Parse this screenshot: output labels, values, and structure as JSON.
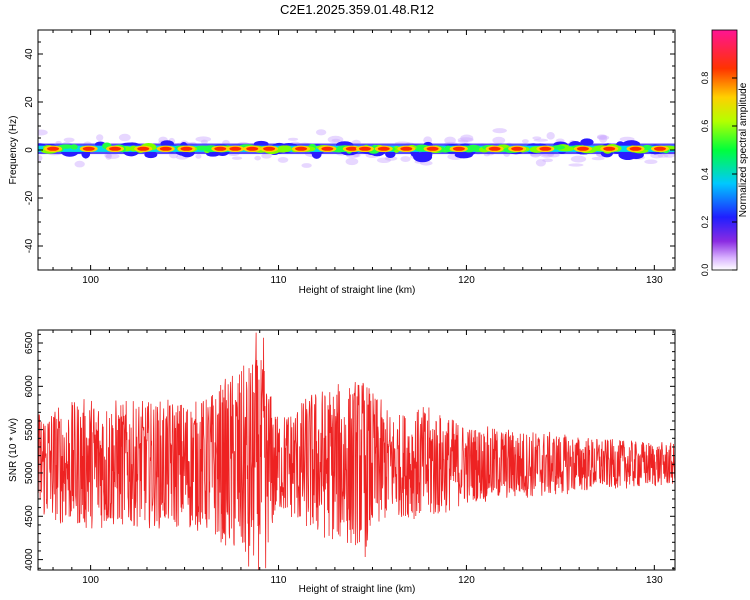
{
  "figure_title": "C2E1.2025.359.01.48.R12",
  "colors": {
    "snr_line": "#ee2222",
    "spectro_background": "#ffffff",
    "axis": "#000000"
  },
  "chart_data": [
    {
      "type": "heatmap",
      "title": "C2E1.2025.359.01.48.R12",
      "xlabel": "Height of straight line (km)",
      "ylabel": "Frequency (Hz)",
      "xlim": [
        97.2,
        131.1
      ],
      "ylim": [
        -50,
        50
      ],
      "xticks": [
        100,
        110,
        120,
        130
      ],
      "yticks": [
        40,
        20,
        0,
        -20,
        -40
      ],
      "band_center_hz": 0.5,
      "band_halfwidth_hz": 4,
      "colorbar": {
        "label": "Normalized spectral amplitude",
        "range": [
          0,
          1
        ],
        "ticks": [
          "0.0",
          "0.2",
          "0.4",
          "0.6",
          "0.8"
        ],
        "colormap": "rainbow (white-violet-blue-cyan-green-yellow-orange-red-magenta)"
      },
      "strong_peaks_km": [
        98.0,
        99.9,
        101.3,
        102.8,
        104.0,
        105.1,
        106.9,
        107.7,
        108.6,
        109.5,
        111.2,
        112.6,
        113.9,
        114.6,
        115.6,
        116.8,
        118.2,
        119.6,
        121.5,
        122.7,
        124.2,
        126.2,
        127.6,
        129.0,
        130.3
      ]
    },
    {
      "type": "line",
      "xlabel": "Height of straight line (km)",
      "ylabel": "SNR (10 * v/v)",
      "xlim": [
        97.2,
        131.1
      ],
      "ylim": [
        3880,
        6650
      ],
      "xticks": [
        100,
        110,
        120,
        130
      ],
      "yticks": [
        4000,
        4500,
        5000,
        5500,
        6000,
        6500
      ],
      "mean": 5100,
      "envelope": [
        {
          "x": 97.2,
          "amplitude": 700
        },
        {
          "x": 100,
          "amplitude": 850
        },
        {
          "x": 103,
          "amplitude": 800
        },
        {
          "x": 106,
          "amplitude": 850
        },
        {
          "x": 108,
          "amplitude": 1250
        },
        {
          "x": 109,
          "amplitude": 1400
        },
        {
          "x": 110,
          "amplitude": 600
        },
        {
          "x": 112,
          "amplitude": 950
        },
        {
          "x": 114.5,
          "amplitude": 1100
        },
        {
          "x": 116,
          "amplitude": 650
        },
        {
          "x": 118,
          "amplitude": 750
        },
        {
          "x": 120,
          "amplitude": 500
        },
        {
          "x": 124,
          "amplitude": 420
        },
        {
          "x": 127,
          "amplitude": 330
        },
        {
          "x": 131.1,
          "amplitude": 270
        }
      ],
      "extremes": [
        {
          "x": 108.4,
          "y": 3920
        },
        {
          "x": 108.8,
          "y": 6620
        },
        {
          "x": 109.2,
          "y": 6560
        },
        {
          "x": 109.3,
          "y": 3900
        },
        {
          "x": 114.6,
          "y": 4030
        }
      ]
    }
  ]
}
